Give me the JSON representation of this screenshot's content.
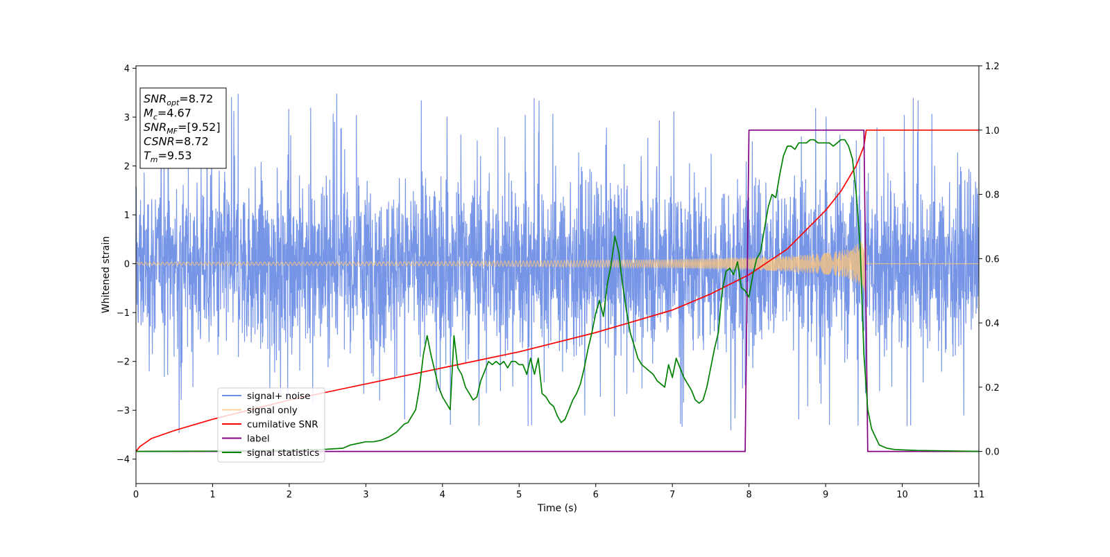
{
  "chart_data": {
    "type": "line",
    "xlabel": "Time (s)",
    "ylabel_left": "Whitened strain",
    "ylabel_right": "",
    "xlim": [
      0,
      11
    ],
    "ylim_left": [
      -4.5,
      4.05
    ],
    "ylim_right": [
      -0.1,
      1.2
    ],
    "x_ticks": [
      "0",
      "1",
      "2",
      "3",
      "4",
      "5",
      "6",
      "7",
      "8",
      "9",
      "10",
      "11"
    ],
    "y_ticks_left": [
      "−4",
      "−3",
      "−2",
      "−1",
      "0",
      "1",
      "2",
      "3",
      "4"
    ],
    "y_ticks_right": [
      "0.0",
      "0.2",
      "0.4",
      "0.6",
      "0.8",
      "1.0",
      "1.2"
    ],
    "grid": false,
    "legend_position": "lower-left",
    "info_box": {
      "lines": [
        {
          "main": "SNR",
          "sub": "opt",
          "value": "=8.72"
        },
        {
          "main": "M",
          "sub": "c",
          "value": "=4.67"
        },
        {
          "main": "SNR",
          "sub": "MF",
          "value": "=[9.52]"
        },
        {
          "main": "CSNR",
          "sub": "",
          "value": "=8.72"
        },
        {
          "main": "T",
          "sub": "m",
          "value": "=9.53"
        }
      ]
    },
    "series": [
      {
        "name": "signal+ noise",
        "axis": "left",
        "color": "#6f8fe6",
        "kind": "noise",
        "typical_amplitude": 1.4,
        "spike_range": [
          -4.15,
          3.62
        ],
        "x_range": [
          0,
          11
        ]
      },
      {
        "name": "signal only",
        "axis": "left",
        "color": "#ffc67a",
        "kind": "chirp",
        "envelope": {
          "x": [
            0,
            2,
            4,
            6,
            7,
            8,
            8.5,
            9,
            9.3,
            9.5,
            9.53
          ],
          "y": [
            0.03,
            0.035,
            0.045,
            0.07,
            0.09,
            0.13,
            0.16,
            0.22,
            0.3,
            0.5,
            0.8
          ]
        },
        "end_time": 9.53
      },
      {
        "name": "cumilative SNR",
        "axis": "right",
        "color": "#ff0000",
        "x": [
          0,
          0.05,
          0.2,
          0.5,
          1,
          2,
          3,
          4,
          5,
          6,
          6.5,
          7,
          7.5,
          8,
          8.5,
          9,
          9.2,
          9.4,
          9.5,
          9.53,
          11
        ],
        "y": [
          0.0,
          0.015,
          0.04,
          0.065,
          0.1,
          0.16,
          0.21,
          0.26,
          0.31,
          0.37,
          0.405,
          0.44,
          0.49,
          0.55,
          0.63,
          0.75,
          0.81,
          0.89,
          0.95,
          1.0,
          1.0
        ]
      },
      {
        "name": "label",
        "axis": "right",
        "color": "#800080",
        "x": [
          0,
          7.95,
          8.0,
          9.5,
          9.55,
          11
        ],
        "y": [
          0,
          0,
          1,
          1,
          0,
          0
        ]
      },
      {
        "name": "signal statistics",
        "axis": "right",
        "color": "#008000",
        "x": [
          0,
          1,
          2,
          2.5,
          2.7,
          2.8,
          2.9,
          3.0,
          3.1,
          3.2,
          3.3,
          3.4,
          3.5,
          3.55,
          3.6,
          3.65,
          3.7,
          3.75,
          3.8,
          3.85,
          3.9,
          3.95,
          4.0,
          4.05,
          4.1,
          4.15,
          4.2,
          4.25,
          4.3,
          4.35,
          4.4,
          4.45,
          4.5,
          4.55,
          4.6,
          4.65,
          4.7,
          4.75,
          4.8,
          4.85,
          4.9,
          4.95,
          5.0,
          5.05,
          5.1,
          5.15,
          5.2,
          5.25,
          5.3,
          5.35,
          5.4,
          5.45,
          5.5,
          5.55,
          5.6,
          5.65,
          5.7,
          5.75,
          5.8,
          5.85,
          5.9,
          5.95,
          6.0,
          6.05,
          6.1,
          6.15,
          6.2,
          6.25,
          6.3,
          6.35,
          6.4,
          6.45,
          6.5,
          6.55,
          6.6,
          6.65,
          6.7,
          6.75,
          6.8,
          6.85,
          6.9,
          6.95,
          7.0,
          7.05,
          7.1,
          7.15,
          7.2,
          7.25,
          7.3,
          7.35,
          7.4,
          7.45,
          7.5,
          7.55,
          7.6,
          7.65,
          7.7,
          7.75,
          7.8,
          7.85,
          7.9,
          7.95,
          8.0,
          8.05,
          8.1,
          8.15,
          8.2,
          8.25,
          8.3,
          8.35,
          8.4,
          8.45,
          8.5,
          8.55,
          8.6,
          8.65,
          8.7,
          8.75,
          8.8,
          8.85,
          8.9,
          8.95,
          9.0,
          9.05,
          9.1,
          9.15,
          9.2,
          9.25,
          9.3,
          9.35,
          9.4,
          9.45,
          9.5,
          9.55,
          9.6,
          9.7,
          9.8,
          9.9,
          10.0,
          10.2,
          11
        ],
        "y": [
          0.0,
          0.001,
          0.003,
          0.007,
          0.01,
          0.02,
          0.025,
          0.03,
          0.03,
          0.035,
          0.045,
          0.06,
          0.085,
          0.09,
          0.11,
          0.13,
          0.2,
          0.3,
          0.36,
          0.3,
          0.25,
          0.2,
          0.17,
          0.15,
          0.13,
          0.36,
          0.26,
          0.24,
          0.2,
          0.18,
          0.16,
          0.17,
          0.22,
          0.25,
          0.28,
          0.27,
          0.28,
          0.27,
          0.28,
          0.26,
          0.28,
          0.28,
          0.27,
          0.27,
          0.24,
          0.29,
          0.24,
          0.29,
          0.18,
          0.17,
          0.15,
          0.14,
          0.11,
          0.09,
          0.1,
          0.13,
          0.16,
          0.18,
          0.21,
          0.26,
          0.32,
          0.37,
          0.43,
          0.47,
          0.42,
          0.52,
          0.58,
          0.67,
          0.62,
          0.52,
          0.44,
          0.37,
          0.33,
          0.29,
          0.27,
          0.26,
          0.25,
          0.24,
          0.22,
          0.21,
          0.2,
          0.27,
          0.23,
          0.29,
          0.26,
          0.23,
          0.21,
          0.19,
          0.16,
          0.15,
          0.16,
          0.2,
          0.26,
          0.32,
          0.37,
          0.5,
          0.56,
          0.57,
          0.55,
          0.59,
          0.51,
          0.5,
          0.48,
          0.55,
          0.6,
          0.62,
          0.69,
          0.76,
          0.8,
          0.79,
          0.86,
          0.92,
          0.95,
          0.95,
          0.94,
          0.96,
          0.96,
          0.96,
          0.97,
          0.97,
          0.96,
          0.96,
          0.96,
          0.96,
          0.95,
          0.96,
          0.97,
          0.97,
          0.95,
          0.91,
          0.8,
          0.64,
          0.3,
          0.13,
          0.07,
          0.02,
          0.01,
          0.006,
          0.005,
          0.003,
          0.0
        ]
      }
    ]
  }
}
